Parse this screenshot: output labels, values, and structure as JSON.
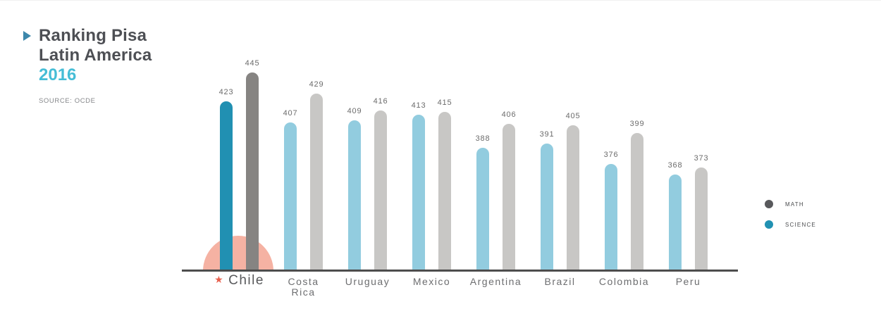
{
  "header": {
    "title_line1": "Ranking Pisa",
    "title_line2": "Latin America",
    "year": "2016",
    "source": "SOURCE: OCDE"
  },
  "icons": {
    "pointer": "triangle-right",
    "star": "★"
  },
  "colors": {
    "science": "#92ccdf",
    "math": "#c8c7c5",
    "science_highlight": "#2190b2",
    "math_highlight": "#868482",
    "legend_math_dot": "#58595c",
    "legend_science_dot": "#2191b2",
    "axis": "#4d4d4d",
    "highlight_arc": "#f5b2a3",
    "star": "#e8604d",
    "accent_year": "#45bdd6",
    "title_text": "#4d4f54"
  },
  "legend": [
    {
      "label": "MATH",
      "color": "#58595c"
    },
    {
      "label": "SCIENCE",
      "color": "#2191b2"
    }
  ],
  "chart_data": {
    "type": "bar",
    "title": "Ranking Pisa Latin America 2016",
    "source": "SOURCE: OCDE",
    "categories": [
      "Chile",
      "Costa Rica",
      "Uruguay",
      "Mexico",
      "Argentina",
      "Brazil",
      "Colombia",
      "Peru"
    ],
    "series": [
      {
        "name": "MATH",
        "values": [
          445,
          429,
          416,
          415,
          406,
          405,
          399,
          373
        ]
      },
      {
        "name": "SCIENCE",
        "values": [
          423,
          407,
          409,
          413,
          388,
          391,
          376,
          368
        ]
      }
    ],
    "bar_display_order": [
      "SCIENCE",
      "MATH"
    ],
    "highlight_country": "Chile",
    "value_labels": true,
    "xlabel": "",
    "ylabel": "",
    "ylim": [
      296,
      460
    ],
    "grid": false,
    "axis_line_only": true,
    "legend_position": "right"
  }
}
